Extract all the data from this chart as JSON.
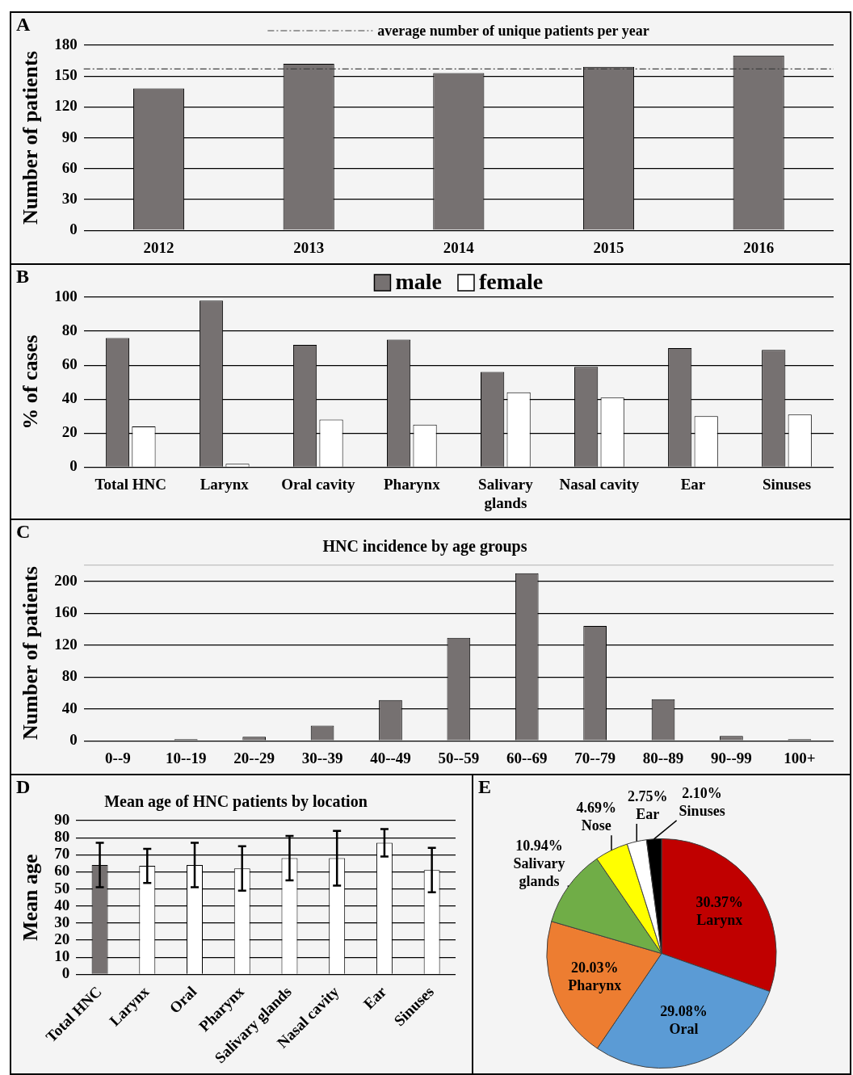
{
  "chart_data": [
    {
      "type": "bar",
      "annotations": [
        "A"
      ],
      "categories": [
        "2012",
        "2013",
        "2014",
        "2015",
        "2016"
      ],
      "values": [
        138,
        162,
        153,
        159,
        170
      ],
      "color": "#767171",
      "ylabel": "Number of patients",
      "ylim": [
        0,
        180
      ],
      "yticks": [
        0,
        30,
        60,
        90,
        120,
        150,
        180
      ],
      "grid": "y",
      "legend": "top",
      "ref_lines": [
        {
          "axis": "y",
          "value": 157,
          "label": "average number of unique patients per year",
          "line_style": "dashed",
          "color": "#404040"
        }
      ]
    },
    {
      "type": "bar",
      "annotations": [
        "B"
      ],
      "categories": [
        "Total HNC",
        "Larynx",
        "Oral cavity",
        "Pharynx",
        "Salivary glands",
        "Nasal cavity",
        "Ear",
        "Sinuses"
      ],
      "ylabel": "% of cases",
      "ylim": [
        0,
        100
      ],
      "yticks": [
        0,
        20,
        40,
        60,
        80,
        100
      ],
      "grid": "y",
      "legend": "top",
      "series": [
        {
          "name": "male",
          "color": "#767171",
          "values": [
            76,
            98,
            72,
            75,
            56,
            59,
            70,
            69
          ]
        },
        {
          "name": "female",
          "color": "#ffffff",
          "values": [
            24,
            2,
            28,
            25,
            44,
            41,
            30,
            31
          ]
        }
      ]
    },
    {
      "type": "bar",
      "annotations": [
        "C"
      ],
      "title": "HNC incidence by age groups",
      "categories": [
        "0--9",
        "10--19",
        "20--29",
        "30--39",
        "40--49",
        "50--59",
        "60--69",
        "70--79",
        "80--89",
        "90--99",
        "100+"
      ],
      "values": [
        0,
        2,
        5,
        19,
        51,
        129,
        210,
        144,
        52,
        6,
        2
      ],
      "color": "#767171",
      "ylabel": "Number of patients",
      "ylim": [
        0,
        220
      ],
      "yticks": [
        0,
        40,
        80,
        120,
        160,
        200,
        {
          "value": 220,
          "label": null
        }
      ],
      "grid": "y"
    },
    {
      "type": "bar",
      "annotations": [
        "D"
      ],
      "title": "Mean age of HNC patients by location",
      "categories": [
        "Total HNC",
        "Larynx",
        "Oral",
        "Pharynx",
        "Salivary glands",
        "Nasal cavity",
        "Ear",
        "Sinuses"
      ],
      "values": [
        64,
        63.5,
        64,
        62,
        68,
        68,
        77,
        61
      ],
      "errors": [
        13,
        10,
        13,
        13,
        13,
        16,
        8,
        13
      ],
      "colors": [
        "#767171",
        "#ffffff",
        "#ffffff",
        "#ffffff",
        "#ffffff",
        "#ffffff",
        "#ffffff",
        "#ffffff"
      ],
      "ylabel": "Mean age",
      "ylim": [
        0,
        90
      ],
      "yticks": [
        0,
        10,
        20,
        30,
        40,
        50,
        60,
        70,
        80,
        90
      ],
      "grid": "y"
    },
    {
      "type": "pie",
      "annotations": [
        "E"
      ],
      "categories": [
        "Larynx",
        "Oral",
        "Pharynx",
        "Salivary glands",
        "Nose",
        "Ear",
        "Sinuses"
      ],
      "values": [
        30.37,
        29.08,
        20.03,
        10.94,
        4.69,
        2.75,
        2.1
      ],
      "value_labels": [
        "30.37%",
        "29.08%",
        "20.03%",
        "10.94%",
        "4.69%",
        "2.75%",
        "2.10%"
      ],
      "colors": [
        "#c00000",
        "#5b9bd5",
        "#ed7d31",
        "#70ad47",
        "#ffff00",
        "#ffffff",
        "#000000"
      ]
    }
  ]
}
